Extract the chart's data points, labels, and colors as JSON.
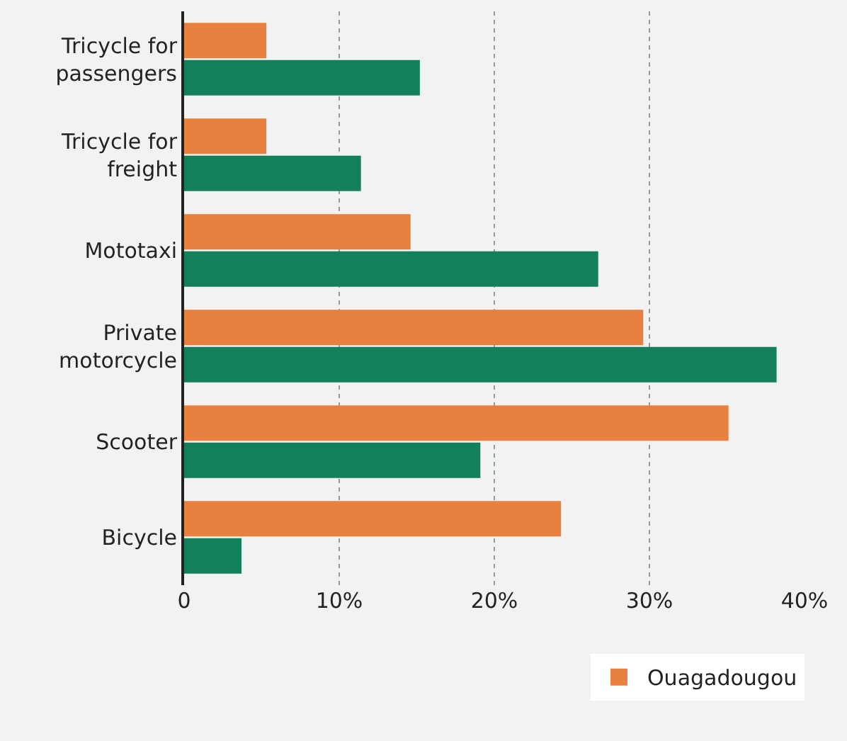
{
  "chart_data": {
    "type": "bar",
    "orientation": "horizontal",
    "categories": [
      "Tricycle for passengers",
      "Tricycle for freight",
      "Mototaxi",
      "Private motorcycle",
      "Scooter",
      "Bicycle"
    ],
    "series": [
      {
        "name": "Ouagadougou",
        "color": "#e8813f",
        "values": [
          5.3,
          5.3,
          14.6,
          29.6,
          35.1,
          24.3
        ]
      },
      {
        "color": "#138059",
        "values": [
          15.2,
          11.4,
          26.7,
          38.2,
          19.1,
          3.7
        ]
      }
    ],
    "xlim": [
      0,
      40
    ],
    "xticks": [
      0,
      {
        "value": 10,
        "label": "10%"
      },
      {
        "value": 20,
        "label": "20%"
      },
      {
        "value": 30,
        "label": "30%"
      },
      {
        "value": 40,
        "label": "40%"
      }
    ],
    "grid": "x",
    "legend": "bottom right"
  }
}
